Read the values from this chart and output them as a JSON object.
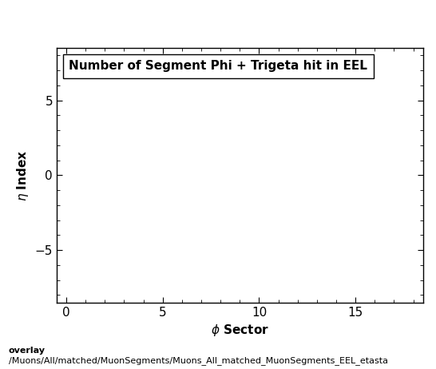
{
  "title": "Number of Segment Phi + Trigeta hit in EEL",
  "xlabel": "$\\phi$ Sector",
  "ylabel": "$\\eta$ Index",
  "xlim": [
    -0.5,
    18.5
  ],
  "ylim": [
    -8.5,
    8.5
  ],
  "xticks": [
    0,
    5,
    10,
    15
  ],
  "yticks": [
    -5,
    0,
    5
  ],
  "footer_line1": "overlay",
  "footer_line2": "/Muons/All/matched/MuonSegments/Muons_All_matched_MuonSegments_EEL_etasta",
  "background_color": "#ffffff",
  "plot_bg_color": "#ffffff",
  "title_fontsize": 11,
  "label_fontsize": 11,
  "tick_fontsize": 11,
  "footer_fontsize": 8
}
